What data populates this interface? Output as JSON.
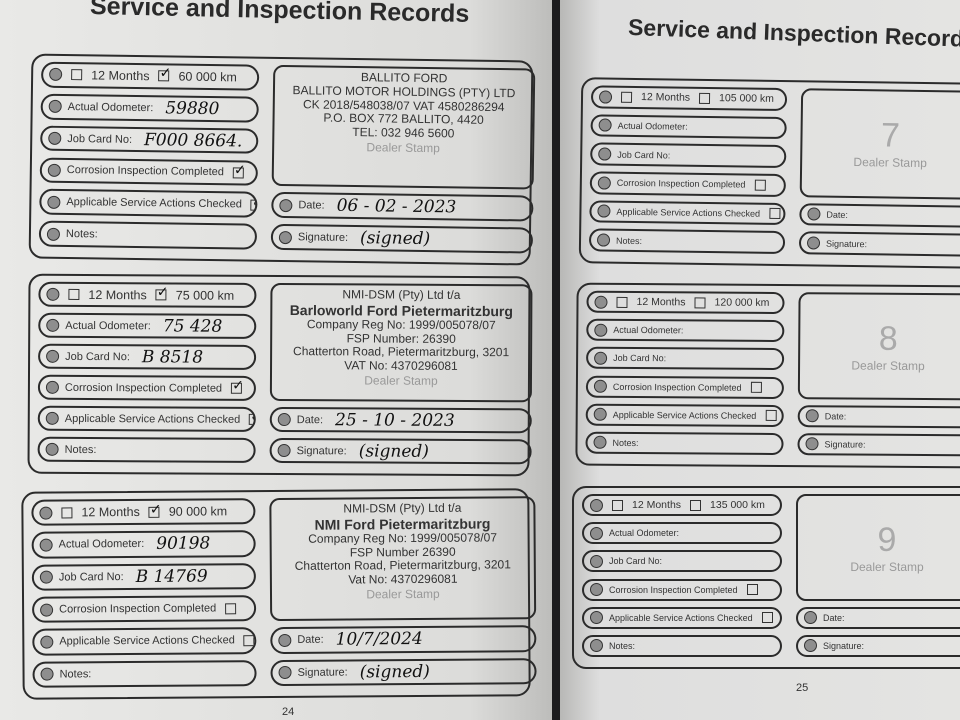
{
  "left_page": {
    "title": "Service and Inspection Records",
    "page_number": "24"
  },
  "right_page": {
    "title": "Service and Inspection Records",
    "page_number": "25"
  },
  "labels": {
    "months": "12 Months",
    "odometer": "Actual Odometer:",
    "job_card": "Job Card No:",
    "corrosion": "Corrosion Inspection Completed",
    "service": "Applicable Service Actions Checked",
    "notes": "Notes:",
    "date": "Date:",
    "signature": "Signature:",
    "dealer_stamp": "Dealer Stamp"
  },
  "records": [
    {
      "km": "60 000 km",
      "km_checked": true,
      "odometer": "59880",
      "job_card": "F000 8664.",
      "corrosion_checked": true,
      "service_checked": true,
      "date": "06 - 02 - 2023",
      "signature": "(signed)",
      "stamp_lines": [
        "BALLITO FORD",
        "BALLITO MOTOR HOLDINGS (PTY) LTD",
        "CK 2018/548038/07 VAT 4580286294",
        "P.O. BOX 772 BALLITO, 4420",
        "TEL: 032 946 5600"
      ]
    },
    {
      "km": "75 000 km",
      "km_checked": true,
      "odometer": "75 428",
      "job_card": "B 8518",
      "corrosion_checked": true,
      "service_checked": true,
      "date": "25 - 10 - 2023",
      "signature": "(signed)",
      "stamp_lines": [
        "NMI-DSM (Pty) Ltd t/a",
        "Barloworld Ford Pietermaritzburg",
        "Company Reg No: 1999/005078/07",
        "FSP Number: 26390",
        "Chatterton Road, Pietermaritzburg, 3201",
        "VAT No: 4370296081"
      ]
    },
    {
      "km": "90 000 km",
      "km_checked": true,
      "odometer": "90198",
      "job_card": "B 14769",
      "corrosion_checked": false,
      "service_checked": false,
      "date": "10/7/2024",
      "signature": "(signed)",
      "stamp_lines": [
        "NMI-DSM (Pty) Ltd t/a",
        "NMI Ford Pietermaritzburg",
        "Company Reg No: 1999/005078/07",
        "FSP Number 26390",
        "Chatterton Road, Pietermaritzburg, 3201",
        "Vat No: 4370296081"
      ]
    },
    {
      "km": "105 000 km",
      "km_checked": false,
      "stamp_number": "7"
    },
    {
      "km": "120 000 km",
      "km_checked": false,
      "stamp_number": "8"
    },
    {
      "km": "135 000 km",
      "km_checked": false,
      "stamp_number": "9"
    }
  ]
}
